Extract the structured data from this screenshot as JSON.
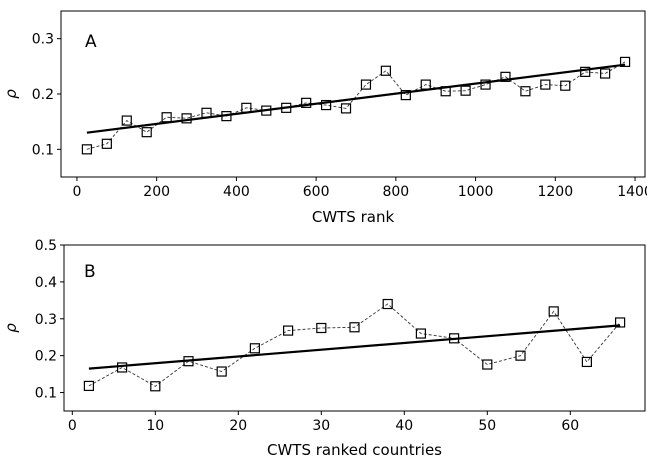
{
  "chart_data": [
    {
      "type": "scatter",
      "panel_label": "A",
      "xlabel": "CWTS rank",
      "ylabel": "ρ",
      "xlim": [
        -40,
        1425
      ],
      "ylim": [
        0.05,
        0.35
      ],
      "xticks": [
        0,
        200,
        400,
        600,
        800,
        1000,
        1200,
        1400
      ],
      "yticks": [
        0.1,
        0.2,
        0.3
      ],
      "grid": false,
      "series": [
        {
          "style": "dashed-line-with-square-markers",
          "x": [
            25,
            75,
            125,
            175,
            225,
            275,
            325,
            375,
            425,
            475,
            525,
            575,
            625,
            675,
            725,
            775,
            825,
            875,
            925,
            975,
            1025,
            1075,
            1125,
            1175,
            1225,
            1275,
            1325,
            1375
          ],
          "y": [
            0.1,
            0.11,
            0.152,
            0.131,
            0.158,
            0.156,
            0.166,
            0.16,
            0.175,
            0.17,
            0.175,
            0.184,
            0.18,
            0.174,
            0.217,
            0.242,
            0.198,
            0.217,
            0.205,
            0.206,
            0.217,
            0.231,
            0.205,
            0.217,
            0.215,
            0.24,
            0.237,
            0.258
          ]
        },
        {
          "style": "solid-fit-line",
          "x": [
            25,
            1375
          ],
          "y": [
            0.13,
            0.253
          ]
        }
      ]
    },
    {
      "type": "scatter",
      "panel_label": "B",
      "xlabel": "CWTS ranked countries",
      "ylabel": "ρ",
      "xlim": [
        -1,
        69
      ],
      "ylim": [
        0.05,
        0.5
      ],
      "xticks": [
        0,
        10,
        20,
        30,
        40,
        50,
        60
      ],
      "yticks": [
        0.1,
        0.2,
        0.3,
        0.4,
        0.5
      ],
      "grid": false,
      "series": [
        {
          "style": "dashed-line-with-square-markers",
          "x": [
            2,
            6,
            10,
            14,
            18,
            22,
            26,
            30,
            34,
            38,
            42,
            46,
            50,
            54,
            58,
            62,
            66
          ],
          "y": [
            0.118,
            0.168,
            0.117,
            0.185,
            0.157,
            0.22,
            0.268,
            0.275,
            0.277,
            0.34,
            0.26,
            0.247,
            0.176,
            0.2,
            0.32,
            0.183,
            0.29
          ]
        },
        {
          "style": "solid-fit-line",
          "x": [
            2,
            66
          ],
          "y": [
            0.165,
            0.282
          ]
        }
      ]
    }
  ]
}
